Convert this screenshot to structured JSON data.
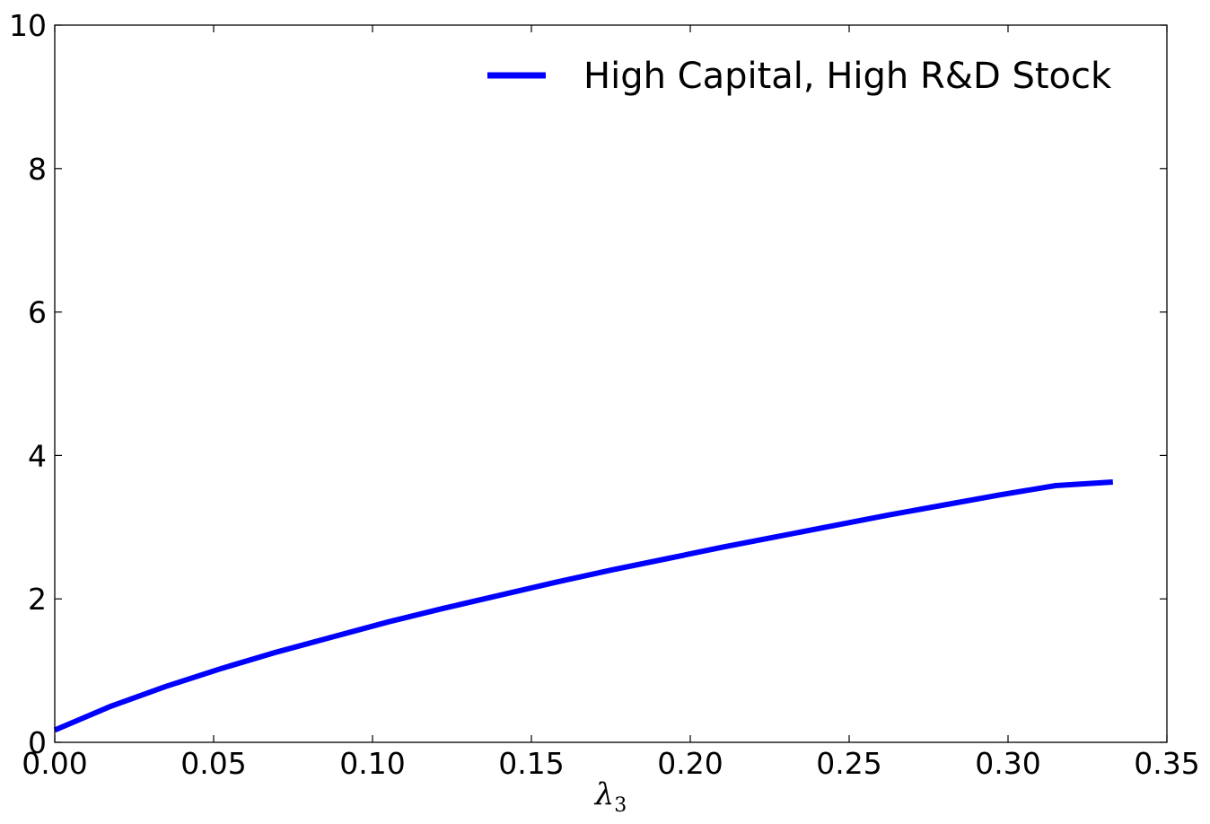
{
  "chart_data": {
    "type": "line",
    "title": "",
    "xlabel": "λ",
    "xlabel_subscript": "3",
    "ylabel": "",
    "xlim": [
      0.0,
      0.35
    ],
    "ylim": [
      0,
      10
    ],
    "x_ticks": [
      0.0,
      0.05,
      0.1,
      0.15,
      0.2,
      0.25,
      0.3,
      0.35
    ],
    "x_tick_labels": [
      "0.00",
      "0.05",
      "0.10",
      "0.15",
      "0.20",
      "0.25",
      "0.30",
      "0.35"
    ],
    "y_ticks": [
      0,
      2,
      4,
      6,
      8,
      10
    ],
    "y_tick_labels": [
      "0",
      "2",
      "4",
      "6",
      "8",
      "10"
    ],
    "grid": false,
    "legend_position": "top-right",
    "series": [
      {
        "name": "High Capital, High R&D Stock",
        "color": "#0000ff",
        "x": [
          0.0,
          0.0175,
          0.035,
          0.0525,
          0.07,
          0.0875,
          0.105,
          0.1225,
          0.14,
          0.1575,
          0.175,
          0.1925,
          0.21,
          0.2275,
          0.245,
          0.2625,
          0.28,
          0.2975,
          0.315,
          0.333
        ],
        "y": [
          0.17,
          0.5,
          0.78,
          1.03,
          1.26,
          1.47,
          1.68,
          1.87,
          2.05,
          2.23,
          2.4,
          2.56,
          2.72,
          2.87,
          3.02,
          3.17,
          3.31,
          3.45,
          3.58,
          3.63
        ]
      }
    ]
  }
}
